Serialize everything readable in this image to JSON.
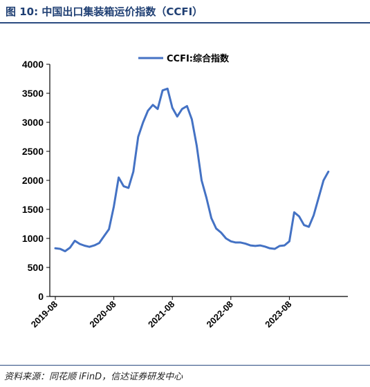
{
  "figure": {
    "title": "图 10:  中国出口集装箱运价指数（CCFI）",
    "source": "资料来源：同花顺 iFinD，信达证券研发中心"
  },
  "colors": {
    "line": "#4472c4",
    "title": "#1f3f73"
  },
  "chart_data": {
    "type": "line",
    "series": [
      {
        "name": "CCFI:综合指数",
        "x": [
          0,
          1,
          2,
          3,
          4,
          5,
          6,
          7,
          8,
          9,
          10,
          11,
          12,
          13,
          14,
          15,
          16,
          17,
          18,
          19,
          20,
          21,
          22,
          23,
          24,
          25,
          26,
          27,
          28,
          29,
          30,
          31,
          32,
          33,
          34,
          35,
          36,
          37,
          38,
          39,
          40,
          41,
          42,
          43,
          44,
          45,
          46,
          47,
          48,
          49,
          50,
          51,
          52,
          53,
          54,
          55,
          56,
          57,
          58,
          59,
          60
        ],
        "values": [
          830,
          820,
          780,
          840,
          960,
          905,
          875,
          855,
          880,
          920,
          1040,
          1160,
          1550,
          2050,
          1900,
          1870,
          2150,
          2750,
          3000,
          3200,
          3300,
          3230,
          3550,
          3580,
          3250,
          3100,
          3230,
          3280,
          3050,
          2600,
          2000,
          1700,
          1350,
          1170,
          1100,
          1000,
          950,
          930,
          930,
          910,
          880,
          870,
          880,
          860,
          830,
          820,
          870,
          880,
          950,
          1450,
          1380,
          1230,
          1200,
          1400,
          1700,
          2000,
          2150,
          2150,
          2150,
          2150,
          2150
        ]
      }
    ],
    "x_tick_labels": [
      "2019-08",
      "2020-08",
      "2021-08",
      "2022-08",
      "2023-08"
    ],
    "x_tick_positions": [
      0,
      12,
      24,
      36,
      48
    ],
    "xlim": [
      0,
      60
    ],
    "yticks": [
      0,
      500,
      1000,
      1500,
      2000,
      2500,
      3000,
      3500,
      4000
    ],
    "ylim": [
      0,
      4000
    ],
    "legend": {
      "position": "top-center",
      "label": "CCFI:综合指数"
    },
    "grid": false
  }
}
